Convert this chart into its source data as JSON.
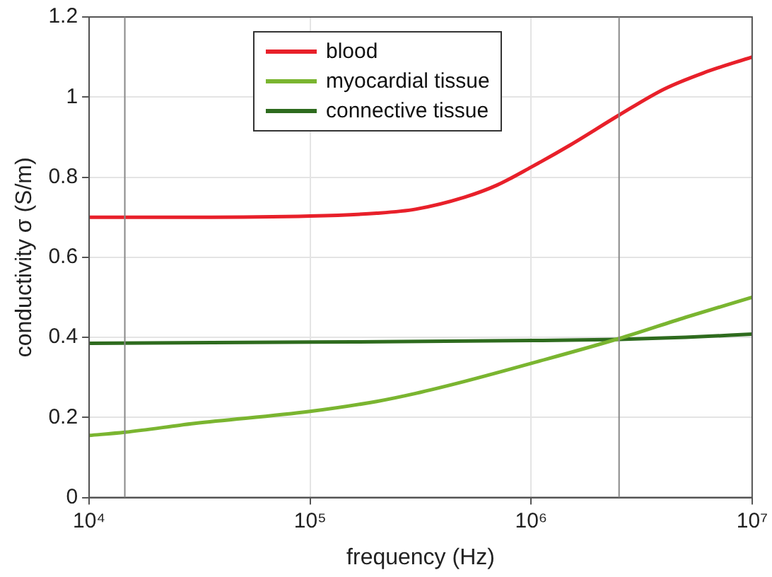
{
  "chart_data": {
    "type": "line",
    "xlabel": "frequency (Hz)",
    "ylabel": "conductivity σ (S/m)",
    "series": [
      {
        "name": "blood",
        "color": "#e8202a",
        "x": [
          10000,
          14500,
          30000,
          100000,
          200000,
          300000,
          500000,
          700000,
          1000000,
          1500000,
          2500000,
          4000000,
          6000000,
          10000000
        ],
        "values": [
          0.7,
          0.7,
          0.7,
          0.703,
          0.71,
          0.72,
          0.75,
          0.78,
          0.825,
          0.88,
          0.955,
          1.02,
          1.06,
          1.1
        ]
      },
      {
        "name": "myocardial tissue",
        "color": "#7ab530",
        "x": [
          10000,
          14500,
          30000,
          100000,
          200000,
          300000,
          500000,
          1000000,
          2500000,
          5000000,
          10000000
        ],
        "values": [
          0.155,
          0.163,
          0.185,
          0.215,
          0.24,
          0.26,
          0.29,
          0.335,
          0.397,
          0.45,
          0.5
        ]
      },
      {
        "name": "connective tissue",
        "color": "#2e6b1e",
        "x": [
          10000,
          100000,
          1000000,
          2500000,
          5000000,
          10000000
        ],
        "values": [
          0.385,
          0.388,
          0.392,
          0.395,
          0.4,
          0.408
        ]
      }
    ],
    "log": "x",
    "xlim": [
      10000,
      10000000
    ],
    "xticks": [
      {
        "value": 10000,
        "label": "10⁴"
      },
      {
        "value": 100000,
        "label": "10⁵"
      },
      {
        "value": 1000000,
        "label": "10⁶"
      },
      {
        "value": 10000000,
        "label": "10⁷"
      }
    ],
    "ylim": [
      0,
      1.2
    ],
    "yticks": [
      0,
      0.2,
      0.4,
      0.6,
      0.8,
      1,
      1.2
    ],
    "grid": true,
    "legend": "top",
    "line_style": "solid",
    "marker": "none",
    "ref_lines": [
      {
        "axis": "x",
        "value": 14500,
        "color": "#888888"
      },
      {
        "axis": "x",
        "value": 2500000,
        "color": "#888888"
      }
    ]
  }
}
